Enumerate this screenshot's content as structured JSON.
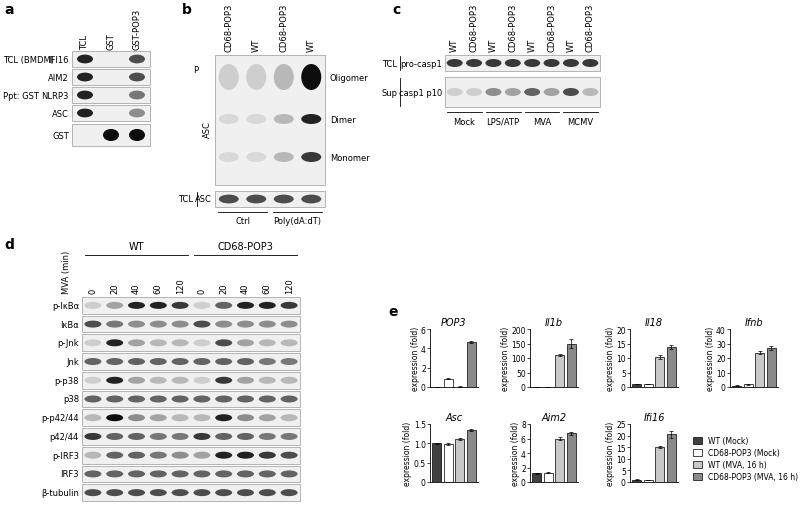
{
  "panels": {
    "a": {
      "label": "a",
      "columns": [
        "TCL",
        "GST",
        "GST-POP3"
      ],
      "groups": [
        "TCL (BMDM)",
        "Ppt: GST"
      ],
      "rows": [
        {
          "name": "IFI16",
          "bands": [
            0.9,
            0.0,
            0.7
          ]
        },
        {
          "name": "AIM2",
          "bands": [
            0.9,
            0.0,
            0.7
          ]
        },
        {
          "name": "NLRP3",
          "bands": [
            0.9,
            0.0,
            0.5
          ]
        },
        {
          "name": "ASC",
          "bands": [
            0.9,
            0.0,
            0.4
          ]
        },
        {
          "name": "GST",
          "bands": [
            0.0,
            1.0,
            1.0
          ]
        }
      ]
    },
    "b": {
      "label": "b",
      "columns": [
        "CD68-POP3",
        "WT",
        "CD68-POP3",
        "WT"
      ],
      "side_labels": [
        "P",
        "ASC"
      ],
      "bands": [
        {
          "name": "Oligomer",
          "intensity": [
            0.1,
            0.1,
            0.2,
            1.0
          ]
        },
        {
          "name": "Dimer",
          "intensity": [
            0.05,
            0.05,
            0.2,
            0.9
          ]
        },
        {
          "name": "Monomer",
          "intensity": [
            0.05,
            0.05,
            0.2,
            0.8
          ]
        }
      ],
      "tcl_row": {
        "names": [
          "TCL",
          "ASC"
        ],
        "bands": [
          0.7,
          0.7,
          0.7,
          0.7
        ]
      },
      "conditions": [
        "Ctrl",
        "Poly(dA:dT)"
      ]
    },
    "c": {
      "label": "c",
      "columns": [
        "WT",
        "CD68-POP3",
        "WT",
        "CD68-POP3",
        "WT",
        "CD68-POP3",
        "WT",
        "CD68-POP3"
      ],
      "rows": [
        {
          "names": [
            "TCL",
            "pro-casp1"
          ],
          "bands": [
            0.8,
            0.8,
            0.8,
            0.8,
            0.8,
            0.8,
            0.8,
            0.8
          ]
        },
        {
          "names": [
            "Sup",
            "casp1 p10"
          ],
          "bands": [
            0.1,
            0.1,
            0.4,
            0.3,
            0.6,
            0.3,
            0.7,
            0.2
          ]
        }
      ],
      "conditions": [
        "Mock",
        "LPS/ATP",
        "MVA",
        "MCMV"
      ]
    },
    "d": {
      "label": "d",
      "groups": [
        "WT",
        "CD68-POP3"
      ],
      "time_label": "MVA (min)",
      "times": [
        "0",
        "20",
        "40",
        "60",
        "120"
      ],
      "rows": [
        {
          "name": "p-IκBα",
          "bands": [
            0.1,
            0.3,
            0.9,
            0.9,
            0.8,
            0.1,
            0.6,
            0.9,
            0.9,
            0.8
          ]
        },
        {
          "name": "IκBα",
          "bands": [
            0.7,
            0.5,
            0.4,
            0.4,
            0.4,
            0.7,
            0.4,
            0.4,
            0.4,
            0.4
          ]
        },
        {
          "name": "p-Jnk",
          "bands": [
            0.1,
            0.9,
            0.3,
            0.2,
            0.2,
            0.1,
            0.7,
            0.3,
            0.2,
            0.2
          ]
        },
        {
          "name": "Jnk",
          "bands": [
            0.6,
            0.6,
            0.6,
            0.6,
            0.6,
            0.6,
            0.6,
            0.6,
            0.5,
            0.5
          ]
        },
        {
          "name": "p-p38",
          "bands": [
            0.1,
            0.9,
            0.3,
            0.2,
            0.2,
            0.1,
            0.8,
            0.3,
            0.2,
            0.2
          ]
        },
        {
          "name": "p38",
          "bands": [
            0.6,
            0.6,
            0.6,
            0.6,
            0.6,
            0.6,
            0.6,
            0.6,
            0.6,
            0.6
          ]
        },
        {
          "name": "p-p42/44",
          "bands": [
            0.2,
            1.0,
            0.4,
            0.3,
            0.2,
            0.2,
            0.9,
            0.4,
            0.3,
            0.2
          ]
        },
        {
          "name": "p42/44",
          "bands": [
            0.8,
            0.6,
            0.6,
            0.5,
            0.5,
            0.8,
            0.6,
            0.6,
            0.5,
            0.5
          ]
        },
        {
          "name": "p-IRF3",
          "bands": [
            0.2,
            0.6,
            0.6,
            0.5,
            0.4,
            0.3,
            0.9,
            0.9,
            0.8,
            0.7
          ]
        },
        {
          "name": "IRF3",
          "bands": [
            0.6,
            0.6,
            0.6,
            0.6,
            0.6,
            0.6,
            0.6,
            0.6,
            0.6,
            0.6
          ]
        },
        {
          "name": "β-tubulin",
          "bands": [
            0.7,
            0.7,
            0.7,
            0.7,
            0.7,
            0.7,
            0.7,
            0.7,
            0.7,
            0.7
          ]
        }
      ]
    },
    "e": {
      "label": "e"
    }
  },
  "legend_entries": [
    {
      "name": "WT (Mock)",
      "color": "#404040"
    },
    {
      "name": "CD68-POP3 (Mock)",
      "color": "#ffffff"
    },
    {
      "name": "WT (MVA, 16 h)",
      "color": "#c8c8c8"
    },
    {
      "name": "CD68-POP3 (MVA, 16 h)",
      "color": "#8a8a8a"
    }
  ],
  "chart_data": [
    {
      "type": "bar",
      "title": "POP3",
      "y_label": "expression (fold)",
      "values": [
        0.02,
        0.85,
        0.05,
        4.7
      ],
      "errors": [
        0.01,
        0.05,
        0.02,
        0.1
      ],
      "ylim": [
        0,
        6
      ],
      "yticks": [
        0,
        2,
        4,
        6
      ]
    },
    {
      "type": "bar",
      "title": "Il1b",
      "y_label": "expression (fold)",
      "values": [
        1,
        1,
        110,
        150
      ],
      "errors": [
        0.1,
        0.1,
        3,
        15
      ],
      "ylim": [
        0,
        200
      ],
      "yticks": [
        0,
        50,
        100,
        150,
        200
      ]
    },
    {
      "type": "bar",
      "title": "Il18",
      "y_label": "expression (fold)",
      "values": [
        1,
        1,
        10.2,
        13.8
      ],
      "errors": [
        0.1,
        0.1,
        0.7,
        0.6
      ],
      "ylim": [
        0,
        20
      ],
      "yticks": [
        0,
        5,
        10,
        15,
        20
      ]
    },
    {
      "type": "bar",
      "title": "Ifnb",
      "y_label": "expression (fold)",
      "values": [
        1,
        2,
        23.5,
        27
      ],
      "errors": [
        0.2,
        0.3,
        1,
        1.5
      ],
      "ylim": [
        0,
        40
      ],
      "yticks": [
        0,
        10,
        20,
        30,
        40
      ]
    },
    {
      "type": "bar",
      "title": "Asc",
      "y_label": "expression (fold)",
      "values": [
        1.0,
        0.98,
        1.12,
        1.34
      ],
      "errors": [
        0.01,
        0.02,
        0.03,
        0.02
      ],
      "ylim": [
        0,
        1.5
      ],
      "yticks": [
        0,
        0.5,
        {
          "value": 1,
          "label": "1.0"
        },
        1.5
      ]
    },
    {
      "type": "bar",
      "title": "Aim2",
      "y_label": "expression (fold)",
      "values": [
        1.2,
        1.3,
        6.0,
        6.7
      ],
      "errors": [
        0.1,
        0.1,
        0.2,
        0.2
      ],
      "ylim": [
        0,
        8
      ],
      "yticks": [
        0,
        2,
        4,
        6,
        8
      ]
    },
    {
      "type": "bar",
      "title": "Ifi16",
      "y_label": "expression (fold)",
      "values": [
        1,
        0.8,
        15,
        20.5
      ],
      "errors": [
        0.1,
        0.1,
        0.5,
        1.5
      ],
      "ylim": [
        0,
        25
      ],
      "yticks": [
        0,
        5,
        10,
        15,
        20,
        25
      ]
    }
  ]
}
